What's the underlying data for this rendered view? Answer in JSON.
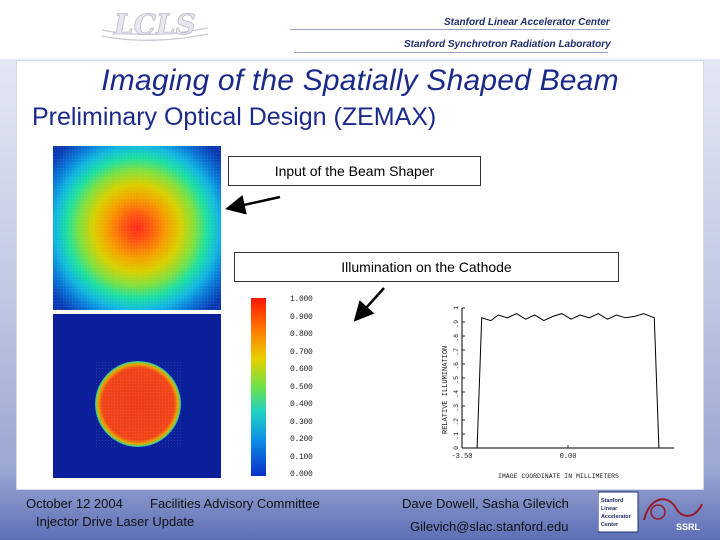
{
  "header": {
    "logo_text": "LCLS",
    "org_line_1": "Stanford Linear Accelerator Center",
    "org_line_2": "Stanford Synchrotron Radiation Laboratory"
  },
  "slide": {
    "title": "Imaging of the Spatially Shaped Beam",
    "subtitle": "Preliminary Optical Design (ZEMAX)"
  },
  "callouts": {
    "input": "Input of the Beam Shaper",
    "cathode": "Illumination on the Cathode"
  },
  "colorbar": {
    "labels": [
      "1.000",
      "0.900",
      "0.800",
      "0.700",
      "0.600",
      "0.500",
      "0.400",
      "0.300",
      "0.200",
      "0.100",
      "0.000"
    ]
  },
  "chart_data": {
    "type": "line",
    "ylabel": "RELATIVE ILLUMINATION",
    "xlabel": "IMAGE COORDINATE IN MILLIMETERS",
    "x_tick_labels": [
      "-3.50",
      "0.00"
    ],
    "y_tick_labels": [
      "0",
      ".1",
      ".2",
      ".3",
      ".4",
      ".5",
      ".6",
      ".7",
      ".8",
      ".9",
      "1"
    ],
    "ylim": [
      0,
      1
    ],
    "xlim": [
      -3.5,
      3.5
    ],
    "series": [
      {
        "x": [
          -3.5,
          -3.0,
          -2.85,
          -2.55,
          -2.3,
          -2.0,
          -1.7,
          -1.4,
          -1.1,
          -0.8,
          -0.5,
          -0.2,
          0.1,
          0.4,
          0.7,
          1.0,
          1.3,
          1.6,
          1.9,
          2.2,
          2.5,
          2.85,
          3.0,
          3.5
        ],
        "y": [
          0.0,
          0.0,
          0.93,
          0.91,
          0.95,
          0.93,
          0.96,
          0.92,
          0.95,
          0.91,
          0.94,
          0.96,
          0.92,
          0.95,
          0.93,
          0.96,
          0.92,
          0.95,
          0.93,
          0.94,
          0.96,
          0.93,
          0.0,
          0.0
        ]
      }
    ]
  },
  "footer": {
    "date": "October 12 2004",
    "committee": "Facilities Advisory Committee",
    "topic": "Injector Drive Laser Update",
    "authors": "Dave Dowell, Sasha Gilevich",
    "email": "Gilevich@slac.stanford.edu",
    "slac_logo_text": "Stanford Linear Accelerator Center",
    "ssrl_text": "SSRL"
  },
  "colors": {
    "title": "#1b2a8a",
    "header_org": "#1f2c6b"
  }
}
